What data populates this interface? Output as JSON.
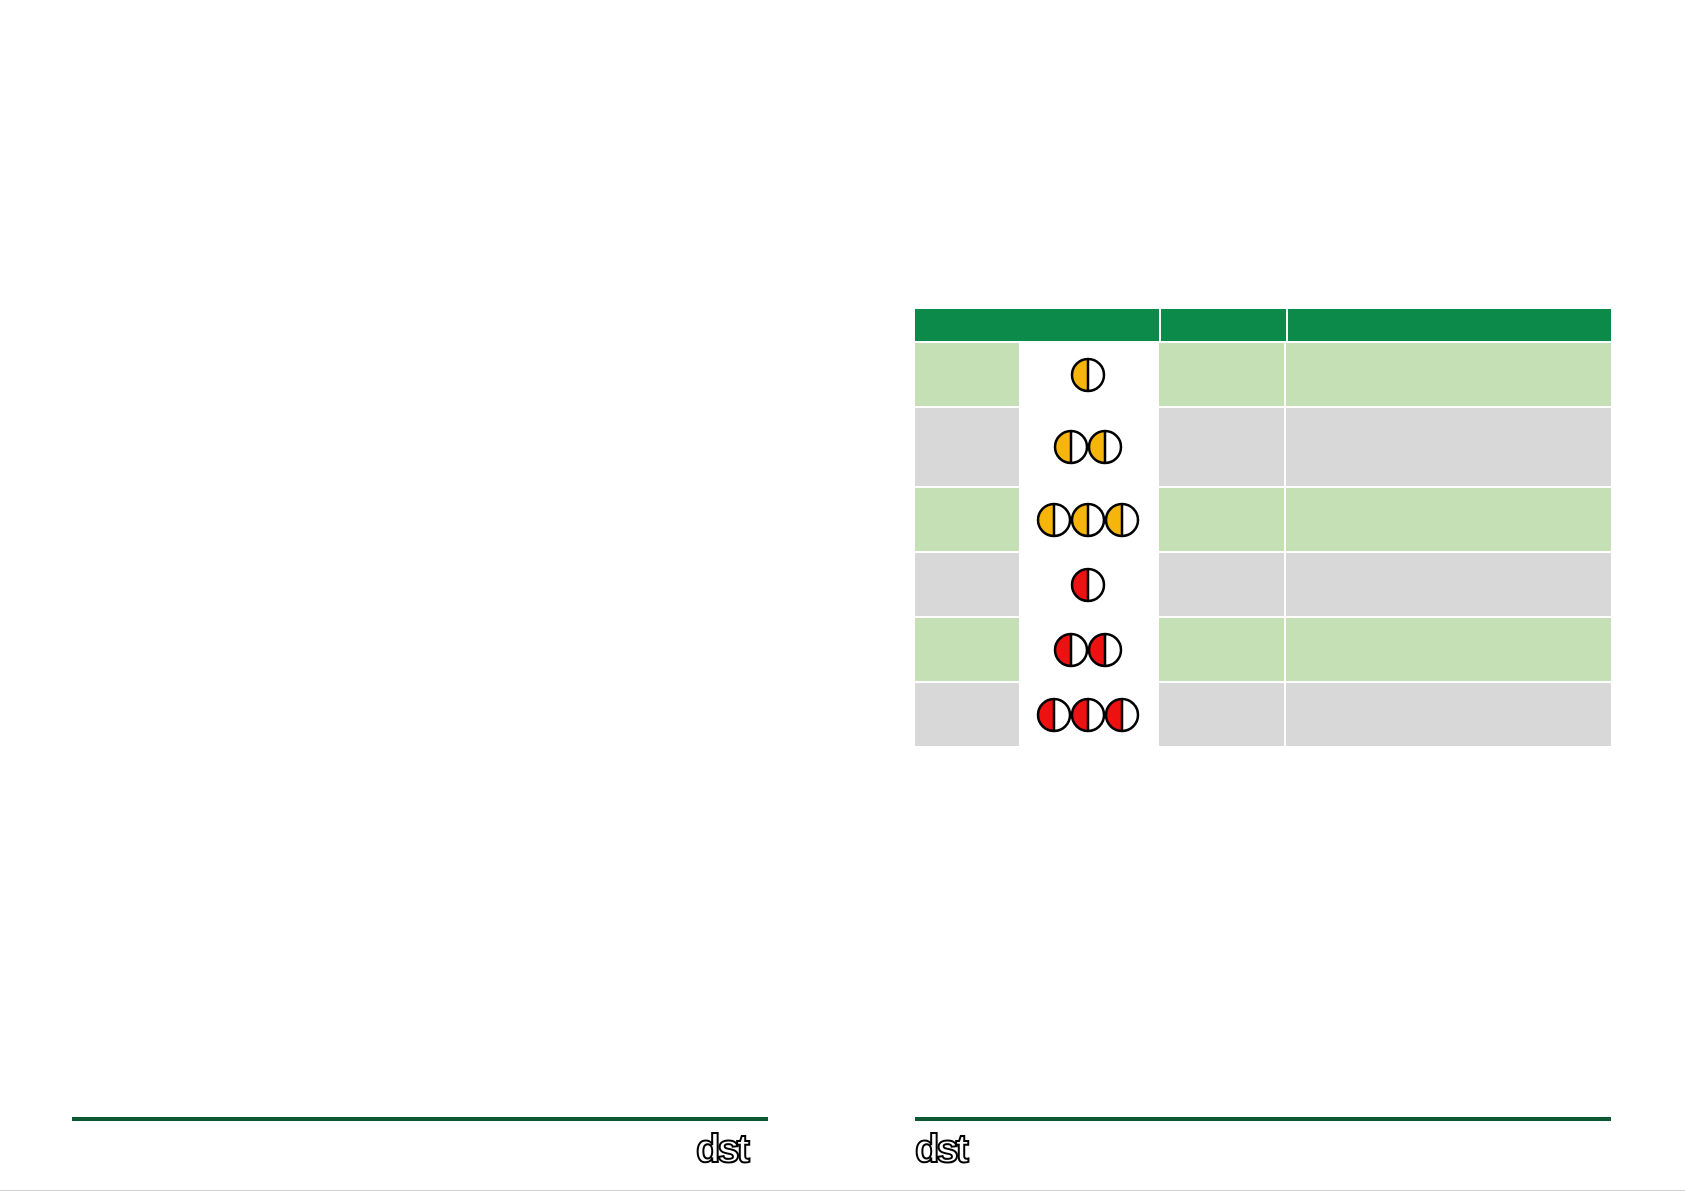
{
  "document": {
    "brand": "dst"
  },
  "table": {
    "header": [
      "",
      "",
      ""
    ],
    "rows": [
      {
        "shade": "green",
        "lamps": 1,
        "color": "#f5b50a",
        "label": "",
        "status": "",
        "description": ""
      },
      {
        "shade": "grey",
        "lamps": 2,
        "color": "#f5b50a",
        "label": "",
        "status": "",
        "description": ""
      },
      {
        "shade": "green",
        "lamps": 3,
        "color": "#f5b50a",
        "label": "",
        "status": "",
        "description": ""
      },
      {
        "shade": "grey",
        "lamps": 1,
        "color": "#ee1111",
        "label": "",
        "status": "",
        "description": ""
      },
      {
        "shade": "green",
        "lamps": 2,
        "color": "#ee1111",
        "label": "",
        "status": "",
        "description": ""
      },
      {
        "shade": "grey",
        "lamps": 3,
        "color": "#ee1111",
        "label": "",
        "status": "",
        "description": ""
      }
    ]
  },
  "colors": {
    "header_green": "#0b8a4a",
    "row_green": "#c5e0b4",
    "row_grey": "#d9d8d9",
    "rule": "#0b5a32",
    "amber": "#f5b50a",
    "red": "#ee1111"
  }
}
